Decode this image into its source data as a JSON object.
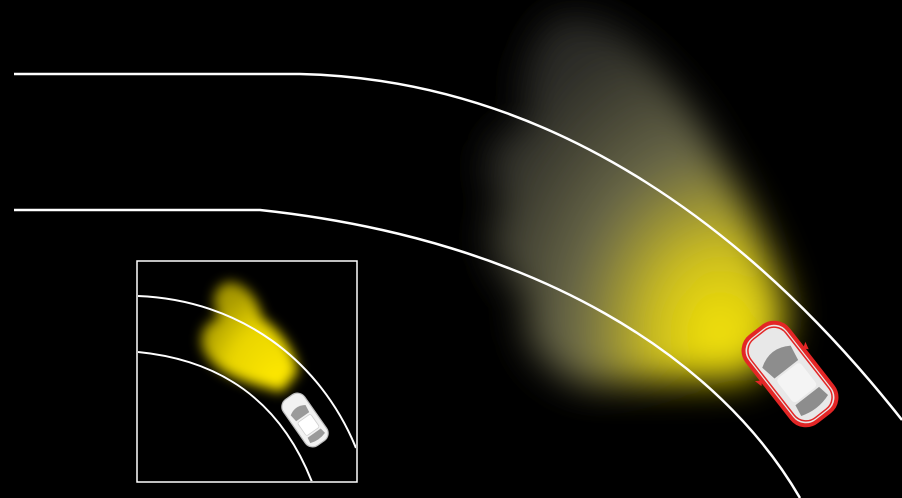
{
  "diagram": {
    "kind": "headlight-beam-illustration",
    "text_labels": [],
    "colors": {
      "background": "#000000",
      "road_lines": "#ffffff",
      "beam_core": "#f5e400",
      "beam_fade": "#8a8a78",
      "main_car_outline": "#e32626",
      "car_body": "#e8e8e8",
      "inset_frame": "#ffffff"
    },
    "main_view": {
      "road": "curve-bending-right",
      "vehicle": "car-with-red-outline",
      "beam": "wide-yellow-beam-swiveled-into-curve"
    },
    "inset_view": {
      "road": "curve-bending-right",
      "vehicle": "white-car",
      "beam": "small-yellow-beam-straight-ahead"
    }
  }
}
